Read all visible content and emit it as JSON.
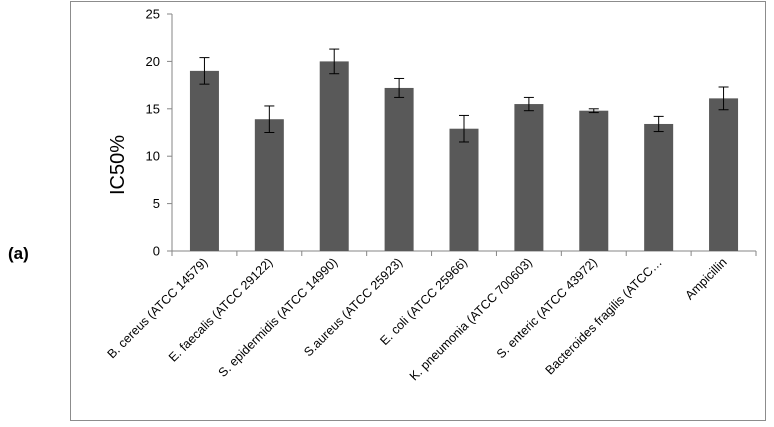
{
  "panel_label": "(a)",
  "chart_data": {
    "type": "bar",
    "title": "",
    "xlabel": "",
    "ylabel": "IC50%",
    "ylim": [
      0,
      25
    ],
    "yticks": [
      0,
      5,
      10,
      15,
      20,
      25
    ],
    "grid": false,
    "categories": [
      "B. cereus (ATCC 14579)",
      "E. faecalis (ATCC 29122)",
      "S. epidermidis (ATCC 14990)",
      "S.aureus (ATCC 25923)",
      "E. coli (ATCC 25966)",
      "K. pneumonia  (ATCC 700603)",
      "S. enteric (ATCC 43972)",
      "Bacteroides fragilis (ATCC…",
      "Ampicillin"
    ],
    "values": [
      19.0,
      13.9,
      20.0,
      17.2,
      12.9,
      15.5,
      14.8,
      13.4,
      16.1
    ],
    "error": [
      1.4,
      1.4,
      1.3,
      1.0,
      1.4,
      0.7,
      0.2,
      0.8,
      1.2
    ],
    "bar_color": "#595959",
    "error_color": "#000000",
    "axis_color": "#868686"
  }
}
